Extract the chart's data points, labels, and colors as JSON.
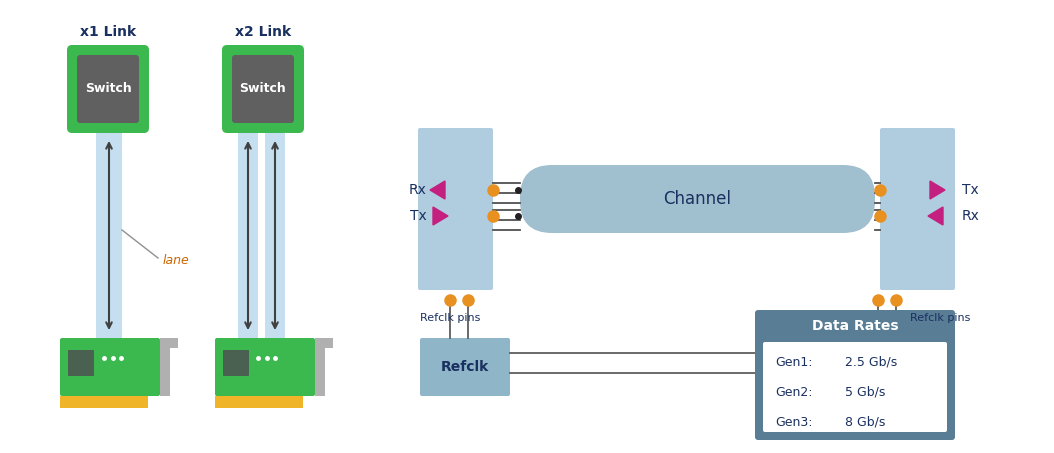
{
  "bg_color": "#ffffff",
  "green": "#3cb94e",
  "green_chip": "#606060",
  "pcb_chip_dark": "#4a6050",
  "pcb_yellow": "#f0b429",
  "pcb_gray": "#b0b0b0",
  "blue_box": "#b0ccdf",
  "channel_color": "#a0bfcf",
  "refclk_color": "#8fb5c8",
  "magenta": "#c42080",
  "orange_pin": "#e89020",
  "arrow_color": "#404040",
  "lane_color": "#cc6600",
  "text_color": "#1a3060",
  "line_color": "#505050",
  "data_rates_bg": "#5a7d96",
  "data_rates_inner": "#ffffff",
  "lane_blue": "#c5dff0",
  "x1_link": "x1 Link",
  "x2_link": "x2 Link",
  "switch_text": "Switch",
  "lane_text": "lane",
  "rx_text": "Rx",
  "tx_text": "Tx",
  "channel_text": "Channel",
  "refclk_text": "Refclk",
  "refclk_pins_text": "Refclk pins",
  "dr_title": "Data Rates",
  "gen1_label": "Gen1:",
  "gen1_val": "2.5 Gb/s",
  "gen2_label": "Gen2:",
  "gen2_val": "5 Gb/s",
  "gen3_label": "Gen3:",
  "gen3_val": "8 Gb/s"
}
